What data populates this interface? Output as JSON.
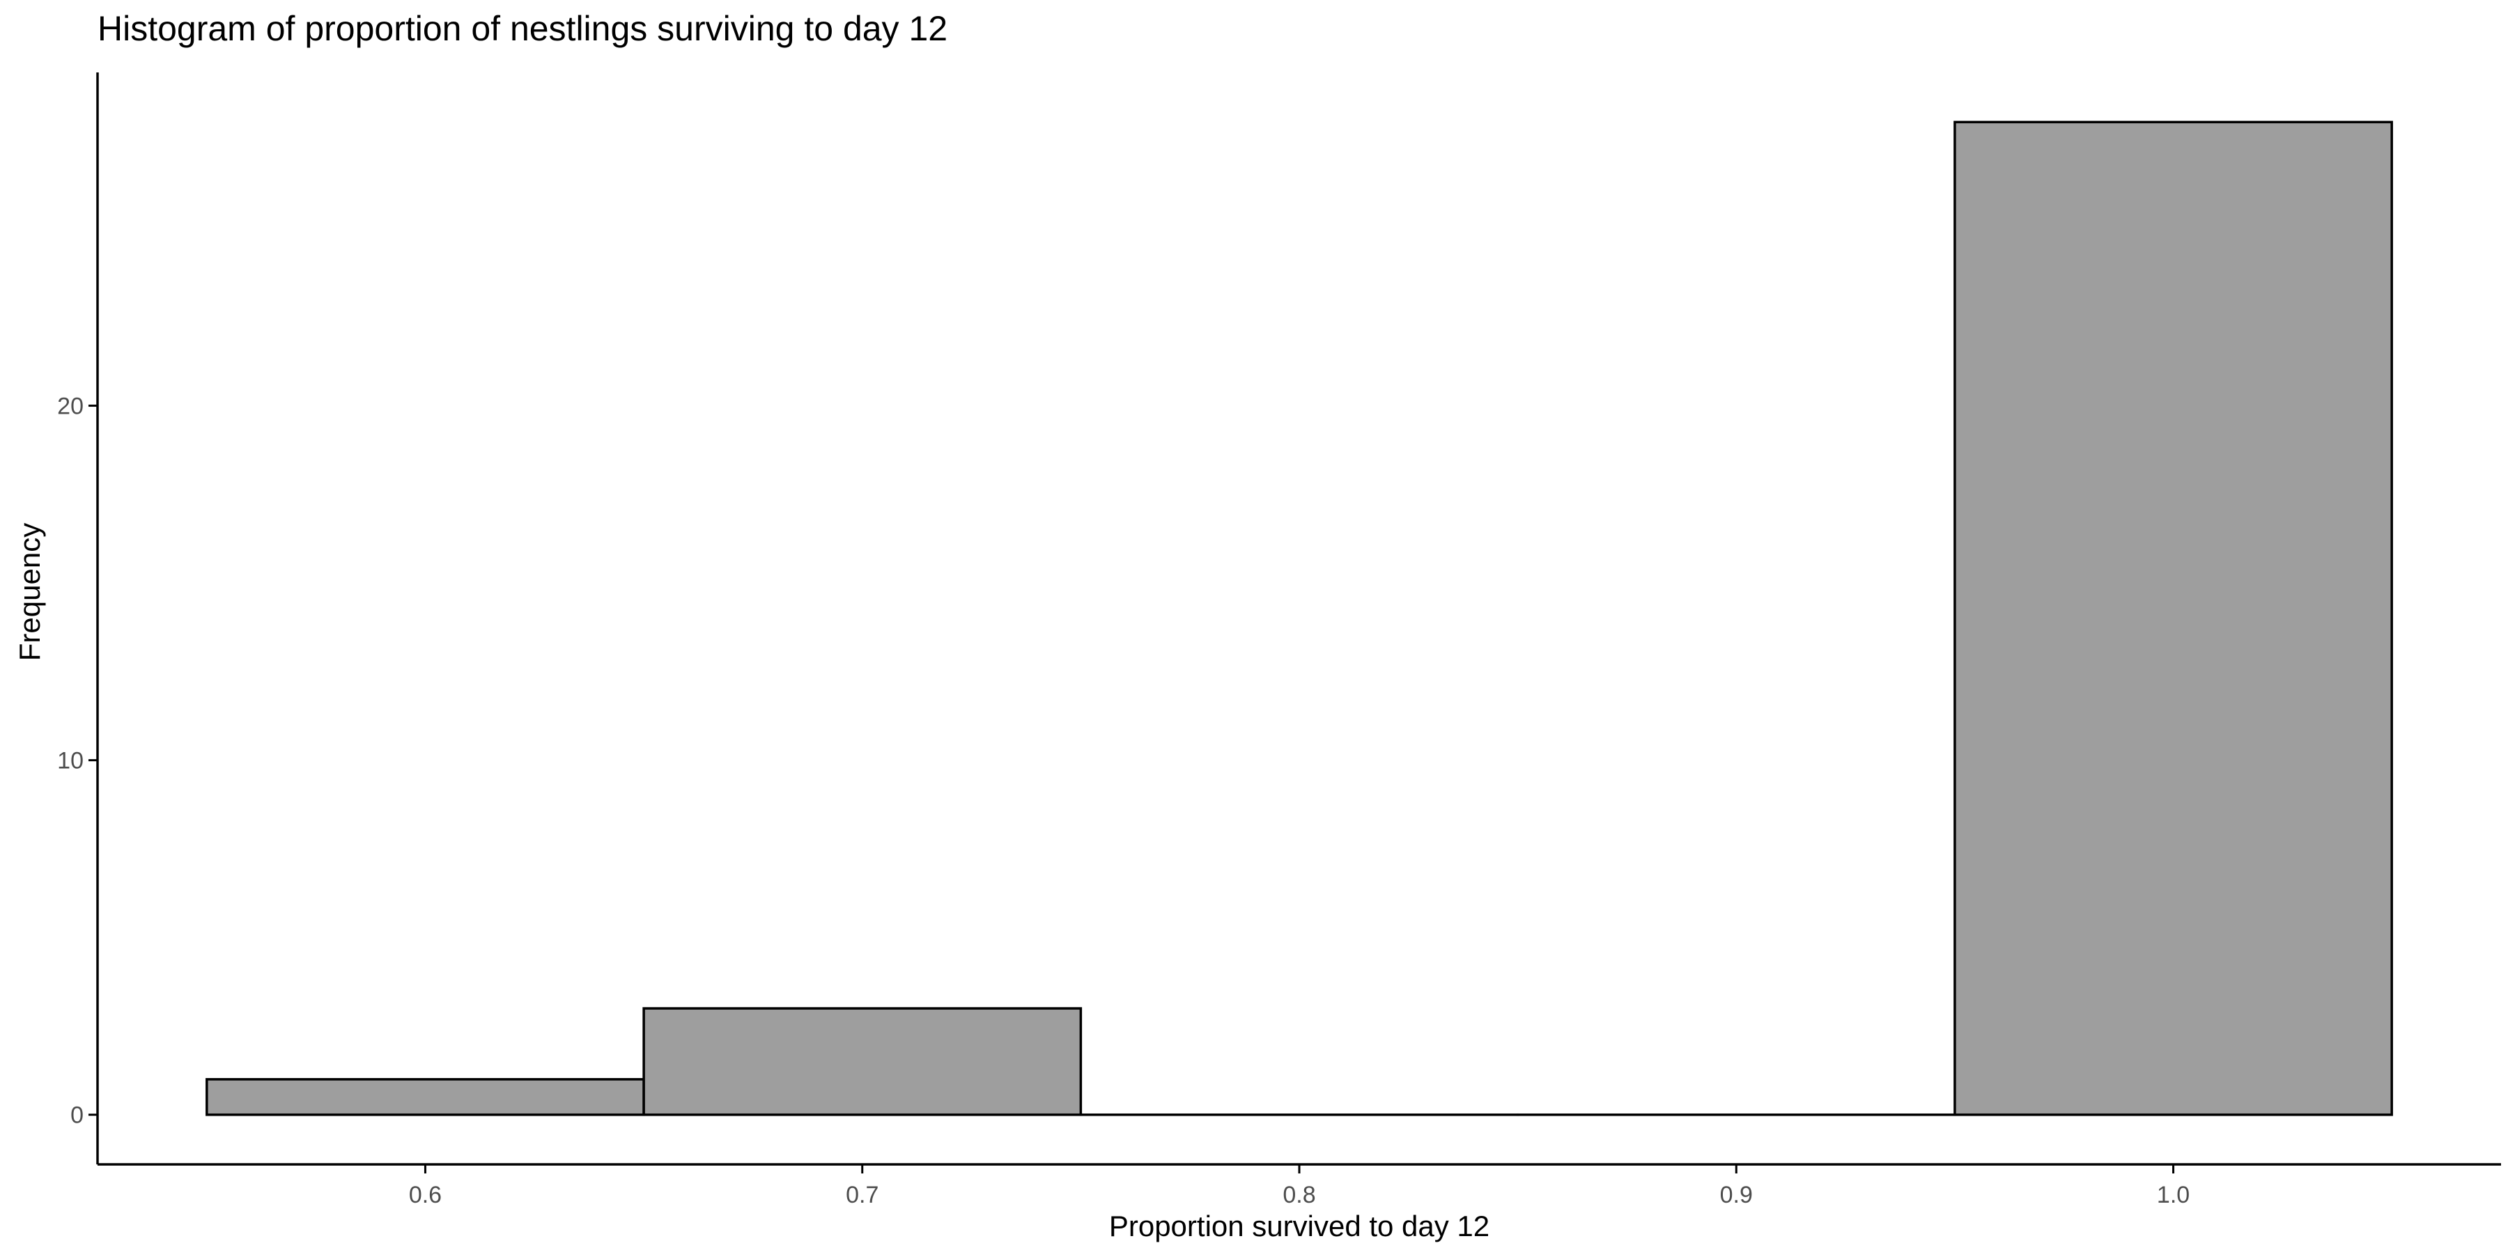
{
  "chart_data": {
    "type": "bar",
    "title": "Histogram of proportion of nestlings surviving to day 12",
    "xlabel": "Proportion survived to day 12",
    "ylabel": "Frequency",
    "bins": [
      {
        "x_min": 0.55,
        "x_max": 0.65,
        "count": 1
      },
      {
        "x_min": 0.65,
        "x_max": 0.75,
        "count": 3
      },
      {
        "x_min": 0.75,
        "x_max": 0.85,
        "count": 0
      },
      {
        "x_min": 0.85,
        "x_max": 0.95,
        "count": 0
      },
      {
        "x_min": 0.95,
        "x_max": 1.05,
        "count": 28
      }
    ],
    "xlim": [
      0.525,
      1.075
    ],
    "ylim": [
      -1.4,
      29.4
    ],
    "x_ticks": [
      0.6,
      0.7,
      0.8,
      0.9,
      1.0
    ],
    "x_tick_labels": [
      "0.6",
      "0.7",
      "0.8",
      "0.9",
      "1.0"
    ],
    "y_ticks": [
      0,
      10,
      20
    ],
    "y_tick_labels": [
      "0",
      "10",
      "20"
    ],
    "grid": false,
    "legend": "none",
    "colors": {
      "bar_fill": "#9e9e9e",
      "bar_stroke": "#000000",
      "axis": "#000000",
      "tick_text": "#4d4d4d"
    }
  }
}
